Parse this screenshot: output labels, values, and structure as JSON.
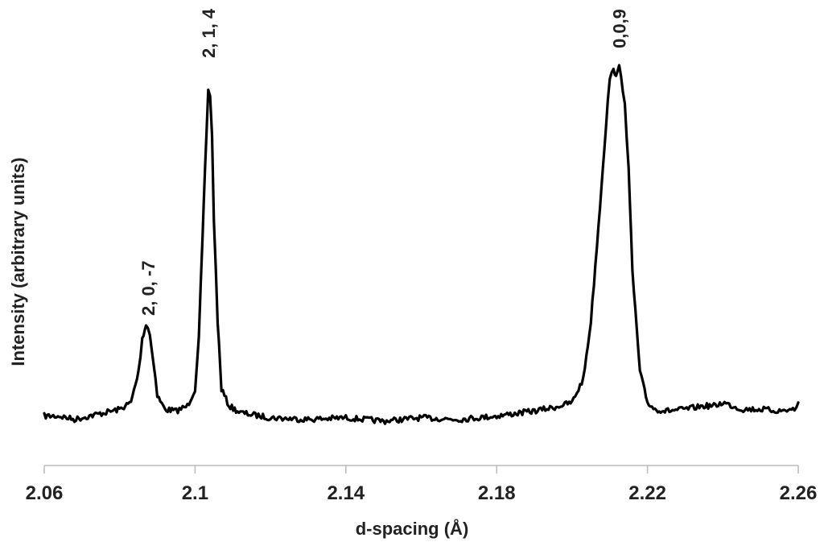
{
  "chart_data": {
    "type": "line",
    "title": "",
    "xlabel": "d-spacing (Å)",
    "ylabel": "Intensity (arbitrary units)",
    "xlim": [
      2.06,
      2.26
    ],
    "ylim": [
      0,
      1
    ],
    "x_ticks": [
      "2.06",
      "2.1",
      "2.14",
      "2.18",
      "2.22",
      "2.26"
    ],
    "x_tick_values": [
      2.06,
      2.1,
      2.14,
      2.18,
      2.22,
      2.26
    ],
    "y_ticks_shown": false,
    "grid": false,
    "legend": "none",
    "line_color": "#000000",
    "series": [
      {
        "x": [
          2.06,
          2.064,
          2.068,
          2.072,
          2.076,
          2.08,
          2.083,
          2.085,
          2.086,
          2.087,
          2.0875,
          2.088,
          2.089,
          2.09,
          2.092,
          2.095,
          2.098,
          2.1,
          2.101,
          2.102,
          2.103,
          2.1035,
          2.104,
          2.1045,
          2.105,
          2.106,
          2.107,
          2.109,
          2.112,
          2.12,
          2.13,
          2.14,
          2.15,
          2.16,
          2.17,
          2.18,
          2.19,
          2.195,
          2.2,
          2.203,
          2.205,
          2.207,
          2.209,
          2.21,
          2.211,
          2.212,
          2.2125,
          2.213,
          2.214,
          2.215,
          2.216,
          2.218,
          2.22,
          2.222,
          2.225,
          2.23,
          2.235,
          2.238,
          2.24,
          2.245,
          2.25,
          2.255,
          2.259,
          2.26
        ],
        "y": [
          0.02,
          0.02,
          0.01,
          0.02,
          0.03,
          0.04,
          0.06,
          0.15,
          0.25,
          0.29,
          0.28,
          0.26,
          0.18,
          0.08,
          0.04,
          0.035,
          0.05,
          0.1,
          0.25,
          0.55,
          0.85,
          0.98,
          0.97,
          0.85,
          0.6,
          0.3,
          0.1,
          0.05,
          0.03,
          0.015,
          0.01,
          0.015,
          0.005,
          0.015,
          0.01,
          0.02,
          0.035,
          0.045,
          0.06,
          0.13,
          0.3,
          0.58,
          0.88,
          1.02,
          1.04,
          1.03,
          1.05,
          1.02,
          0.95,
          0.75,
          0.45,
          0.15,
          0.06,
          0.04,
          0.035,
          0.04,
          0.05,
          0.05,
          0.06,
          0.04,
          0.04,
          0.035,
          0.04,
          0.06
        ]
      }
    ],
    "annotations": [
      {
        "text": "2, 0, -7",
        "x": 2.0875
      },
      {
        "text": "2, 1, 4",
        "x": 2.1035
      },
      {
        "text": "0,0,9",
        "x": 2.2125
      }
    ]
  }
}
